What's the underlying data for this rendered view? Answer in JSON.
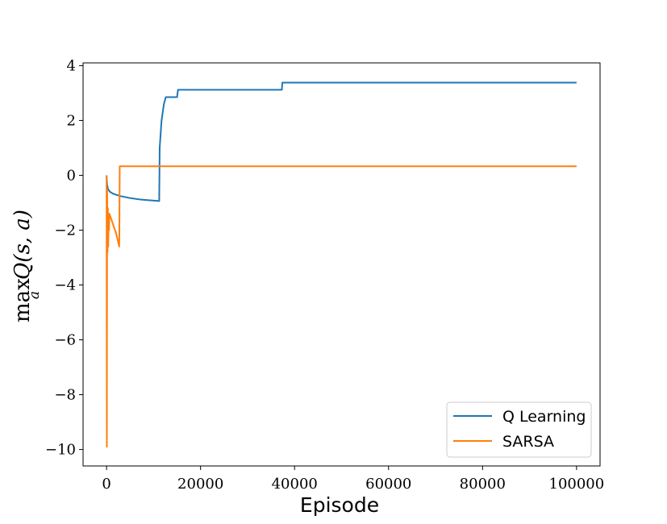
{
  "chart_data": {
    "type": "line",
    "xlabel": "Episode",
    "ylabel_parts": {
      "op": "max",
      "sub": "a",
      "expr": "Q(s, a)"
    },
    "xlim": [
      -5000,
      105000
    ],
    "ylim": [
      -10.6,
      4.1
    ],
    "xticks": [
      0,
      20000,
      40000,
      60000,
      80000,
      100000
    ],
    "xtick_labels": [
      "0",
      "20000",
      "40000",
      "60000",
      "80000",
      "100000"
    ],
    "yticks": [
      4,
      2,
      0,
      -2,
      -4,
      -6,
      -8,
      -10
    ],
    "ytick_labels": [
      "4",
      "2",
      "0",
      "−2",
      "−4",
      "−6",
      "−8",
      "−10"
    ],
    "grid": false,
    "legend_position": "lower-right",
    "series": [
      {
        "name": "Q Learning",
        "color": "#1f77b4",
        "points": [
          [
            0,
            0
          ],
          [
            50,
            -0.2
          ],
          [
            120,
            -0.35
          ],
          [
            300,
            -0.5
          ],
          [
            700,
            -0.6
          ],
          [
            1500,
            -0.68
          ],
          [
            3000,
            -0.76
          ],
          [
            5000,
            -0.83
          ],
          [
            7000,
            -0.88
          ],
          [
            9000,
            -0.91
          ],
          [
            11200,
            -0.94
          ],
          [
            11300,
            1.0
          ],
          [
            11700,
            2.0
          ],
          [
            12200,
            2.6
          ],
          [
            12600,
            2.85
          ],
          [
            15000,
            2.85
          ],
          [
            15200,
            3.12
          ],
          [
            37300,
            3.12
          ],
          [
            37400,
            3.38
          ],
          [
            100000,
            3.38
          ]
        ]
      },
      {
        "name": "SARSA",
        "color": "#ff7f0e",
        "points": [
          [
            0,
            0
          ],
          [
            60,
            -9.9
          ],
          [
            130,
            -0.5
          ],
          [
            200,
            -2.8
          ],
          [
            280,
            -1.2
          ],
          [
            360,
            -2.6
          ],
          [
            440,
            -1.5
          ],
          [
            520,
            -2.0
          ],
          [
            600,
            -1.4
          ],
          [
            1200,
            -1.7
          ],
          [
            2000,
            -2.1
          ],
          [
            2700,
            -2.6
          ],
          [
            2800,
            0.33
          ],
          [
            100000,
            0.33
          ]
        ]
      }
    ]
  }
}
